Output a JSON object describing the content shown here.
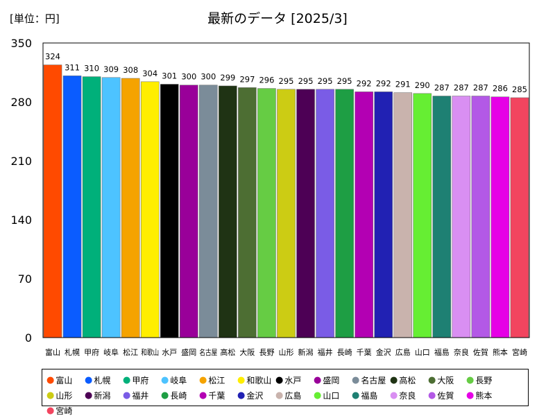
{
  "unit_label": "[単位：円]",
  "title": "最新のデータ [2025/3]",
  "chart_data": {
    "type": "bar",
    "title": "最新のデータ [2025/3]",
    "ylabel": "[単位：円]",
    "xlabel": "",
    "ylim": [
      0,
      350
    ],
    "yticks": [
      0,
      70,
      140,
      210,
      280,
      350
    ],
    "grid": false,
    "legend_position": "bottom",
    "categories": [
      "富山",
      "札幌",
      "甲府",
      "岐阜",
      "松江",
      "和歌山",
      "水戸",
      "盛岡",
      "名古屋",
      "高松",
      "大阪",
      "長野",
      "山形",
      "新潟",
      "福井",
      "長崎",
      "千葉",
      "金沢",
      "広島",
      "山口",
      "福島",
      "奈良",
      "佐賀",
      "熊本",
      "宮崎"
    ],
    "values": [
      324,
      311,
      310,
      309,
      308,
      304,
      301,
      300,
      300,
      299,
      297,
      296,
      295,
      295,
      295,
      295,
      292,
      292,
      291,
      290,
      287,
      287,
      287,
      286,
      285
    ],
    "colors": [
      "#ff4a00",
      "#0a5cff",
      "#00b07a",
      "#4dc3ff",
      "#f5a300",
      "#ffee00",
      "#000000",
      "#990099",
      "#7b8c99",
      "#1f3314",
      "#4d6e33",
      "#66cc44",
      "#cccc14",
      "#4d0055",
      "#7a5ce6",
      "#1e9e44",
      "#b300b3",
      "#2121b3",
      "#c9b3ad",
      "#66ee33",
      "#1e8073",
      "#d98ff2",
      "#b359e6",
      "#e600e6",
      "#f2455f"
    ]
  }
}
